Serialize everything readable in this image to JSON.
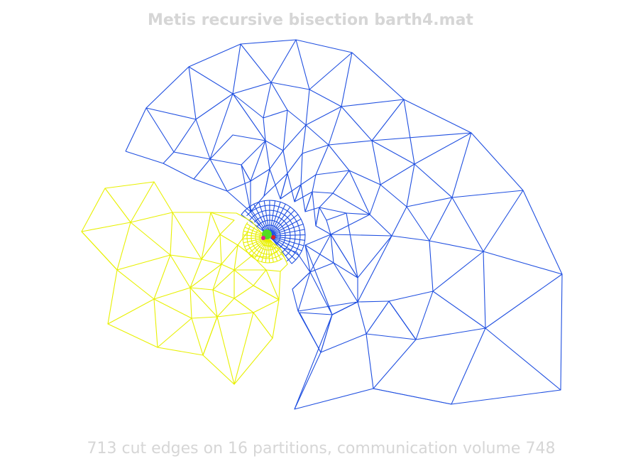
{
  "figure": {
    "title": "Metis recursive bisection barth4.mat",
    "caption": "713 cut edges on 16 partitions, communication volume 748"
  },
  "partitions": {
    "blue": {
      "color": "#1f4fe0"
    },
    "yellow": {
      "color": "#e8f000"
    },
    "green": {
      "color": "#55dd22"
    },
    "magenta": {
      "color": "#e0208a"
    },
    "red": {
      "color": "#e02020"
    }
  }
}
